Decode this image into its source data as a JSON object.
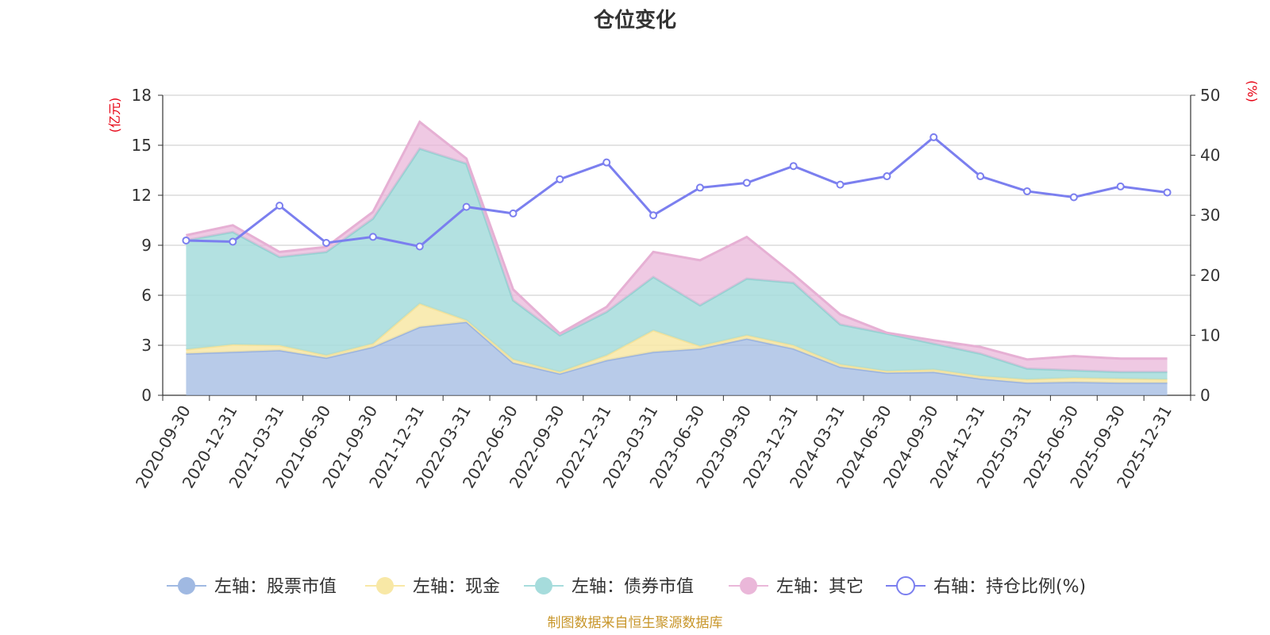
{
  "title": "仓位变化",
  "source_note": "制图数据来自恒生聚源数据库",
  "chart_data": {
    "type": "area",
    "title": "仓位变化",
    "categories": [
      "2020-09-30",
      "2020-12-31",
      "2021-03-31",
      "2021-06-30",
      "2021-09-30",
      "2021-12-31",
      "2022-03-31",
      "2022-06-30",
      "2022-09-30",
      "2022-12-31",
      "2023-03-31",
      "2023-06-30",
      "2023-09-30",
      "2023-12-31",
      "2024-03-31",
      "2024-06-30",
      "2024-09-30",
      "2024-12-31",
      "2025-03-31",
      "2025-06-30",
      "2025-09-30",
      "2025-12-31"
    ],
    "left_axis": {
      "unit": "(亿元)",
      "ylim": [
        0,
        18
      ],
      "ticks": [
        0,
        3,
        6,
        9,
        12,
        15,
        18
      ]
    },
    "right_axis": {
      "unit": "(%)",
      "ylim": [
        0,
        50
      ],
      "ticks": [
        0,
        10,
        20,
        30,
        40,
        50
      ]
    },
    "stacked_series": [
      {
        "name": "左轴：股票市值",
        "color": "#a0b9e2",
        "line_color": "#9ab3df",
        "fill_opacity": 0.75,
        "values": [
          2.5,
          2.6,
          2.7,
          2.25,
          2.9,
          4.1,
          4.4,
          1.95,
          1.3,
          2.1,
          2.6,
          2.8,
          3.4,
          2.8,
          1.7,
          1.35,
          1.4,
          1.0,
          0.75,
          0.8,
          0.75,
          0.75
        ]
      },
      {
        "name": "左轴：现金",
        "color": "#f8e8a6",
        "line_color": "#f4e29a",
        "fill_opacity": 0.85,
        "values": [
          0.25,
          0.45,
          0.3,
          0.15,
          0.2,
          1.4,
          0.1,
          0.2,
          0.1,
          0.3,
          1.3,
          0.15,
          0.2,
          0.2,
          0.15,
          0.1,
          0.15,
          0.15,
          0.2,
          0.25,
          0.25,
          0.2
        ]
      },
      {
        "name": "左轴：债券市值",
        "color": "#a6dcdc",
        "line_color": "#94d2d2",
        "fill_opacity": 0.85,
        "values": [
          6.55,
          6.75,
          5.3,
          6.2,
          7.5,
          9.3,
          9.4,
          3.55,
          2.2,
          2.6,
          3.2,
          2.45,
          3.4,
          3.75,
          2.4,
          2.25,
          1.55,
          1.35,
          0.65,
          0.45,
          0.4,
          0.45
        ]
      },
      {
        "name": "左轴：其它",
        "color": "#eab7d9",
        "line_color": "#e6b0d4",
        "fill_opacity": 0.75,
        "values": [
          0.3,
          0.4,
          0.3,
          0.3,
          0.4,
          1.6,
          0.3,
          0.65,
          0.1,
          0.3,
          1.5,
          2.7,
          2.5,
          0.5,
          0.6,
          0.05,
          0.2,
          0.4,
          0.55,
          0.85,
          0.8,
          0.8
        ]
      }
    ],
    "line_series": {
      "name": "右轴：持仓比例(%)",
      "color": "#7b7fef",
      "values": [
        25.8,
        25.6,
        31.6,
        25.4,
        26.4,
        24.8,
        31.4,
        30.3,
        36.0,
        38.8,
        30.0,
        34.6,
        35.4,
        38.2,
        35.1,
        36.5,
        43.0,
        36.5,
        34.0,
        33.0,
        34.8,
        33.8
      ]
    },
    "legend": [
      "左轴：股票市值",
      "左轴：现金",
      "左轴：债券市值",
      "左轴：其它",
      "右轴：持仓比例(%)"
    ],
    "grid": true,
    "legend_position": "bottom"
  }
}
